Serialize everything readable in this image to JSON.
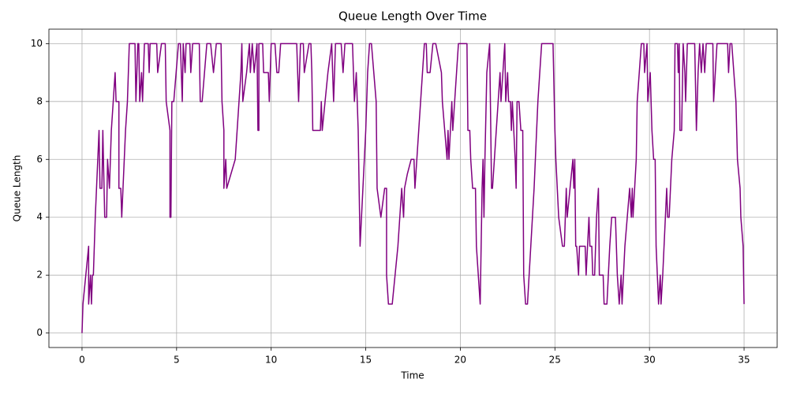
{
  "chart_data": {
    "type": "line",
    "title": "Queue Length Over Time",
    "x_label": "Time",
    "y_label": "Queue Length",
    "x": [
      0,
      0.05,
      0.35,
      0.35,
      0.45,
      0.5,
      0.55,
      0.6,
      0.7,
      0.9,
      0.95,
      1.05,
      1.1,
      1.2,
      1.3,
      1.35,
      1.45,
      1.55,
      1.75,
      1.8,
      1.95,
      1.95,
      2.05,
      2.1,
      2.3,
      2.4,
      2.5,
      2.8,
      2.85,
      2.95,
      3.0,
      3.05,
      3.15,
      3.2,
      3.3,
      3.5,
      3.55,
      3.6,
      3.95,
      4.0,
      4.2,
      4.4,
      4.45,
      4.55,
      4.65,
      4.65,
      4.7,
      4.75,
      4.85,
      5.1,
      5.2,
      5.3,
      5.35,
      5.45,
      5.5,
      5.7,
      5.75,
      5.85,
      6.2,
      6.25,
      6.35,
      6.6,
      6.8,
      6.95,
      7.1,
      7.2,
      7.35,
      7.4,
      7.5,
      7.5,
      7.6,
      7.65,
      8.1,
      8.3,
      8.4,
      8.45,
      8.5,
      8.7,
      8.85,
      8.9,
      9.0,
      9.1,
      9.25,
      9.3,
      9.35,
      9.35,
      9.55,
      9.6,
      9.85,
      9.9,
      10.0,
      10.2,
      10.3,
      10.4,
      10.5,
      10.8,
      11.35,
      11.45,
      11.5,
      11.55,
      11.7,
      11.75,
      12.0,
      12.1,
      12.15,
      12.2,
      12.6,
      12.65,
      12.7,
      13.0,
      13.2,
      13.3,
      13.4,
      13.7,
      13.8,
      13.9,
      14.05,
      14.3,
      14.4,
      14.5,
      14.6,
      14.7,
      15.0,
      15.1,
      15.2,
      15.3,
      15.55,
      15.6,
      15.8,
      16.0,
      16.1,
      16.1,
      16.2,
      16.4,
      16.7,
      16.9,
      17.0,
      17.05,
      17.2,
      17.4,
      17.55,
      17.6,
      17.8,
      18.0,
      18.1,
      18.2,
      18.25,
      18.4,
      18.55,
      18.7,
      19.0,
      19.05,
      19.3,
      19.35,
      19.4,
      19.55,
      19.6,
      19.8,
      19.9,
      20.2,
      20.35,
      20.4,
      20.5,
      20.55,
      20.65,
      20.8,
      20.85,
      21.05,
      21.15,
      21.2,
      21.25,
      21.3,
      21.4,
      21.55,
      21.65,
      21.7,
      21.8,
      22.0,
      22.1,
      22.15,
      22.25,
      22.35,
      22.4,
      22.5,
      22.55,
      22.65,
      22.7,
      22.75,
      22.9,
      22.95,
      23.0,
      23.1,
      23.2,
      23.3,
      23.35,
      23.45,
      23.55,
      23.9,
      24.1,
      24.3,
      24.9,
      25.0,
      25.05,
      25.2,
      25.4,
      25.5,
      25.55,
      25.6,
      25.65,
      25.8,
      25.95,
      26.0,
      26.05,
      26.1,
      26.15,
      26.25,
      26.3,
      26.6,
      26.65,
      26.8,
      26.85,
      26.95,
      27.0,
      27.1,
      27.2,
      27.3,
      27.35,
      27.55,
      27.6,
      27.75,
      27.9,
      28.0,
      28.2,
      28.3,
      28.4,
      28.5,
      28.55,
      28.7,
      28.95,
      29.04,
      29.09,
      29.13,
      29.3,
      29.35,
      29.57,
      29.7,
      29.74,
      29.87,
      29.91,
      30.04,
      30.13,
      30.22,
      30.3,
      30.35,
      30.48,
      30.57,
      30.61,
      30.7,
      30.91,
      30.96,
      31.04,
      31.18,
      31.31,
      31.35,
      31.48,
      31.52,
      31.57,
      31.61,
      31.7,
      31.78,
      31.87,
      31.91,
      32.0,
      32.39,
      32.48,
      32.57,
      32.65,
      32.74,
      32.83,
      32.92,
      33.0,
      33.35,
      33.39,
      33.48,
      33.57,
      33.87,
      34.13,
      34.18,
      34.26,
      34.35,
      34.57,
      34.65,
      34.79,
      34.83,
      34.95,
      35.0
    ],
    "values": [
      0,
      1,
      3,
      1,
      2,
      1,
      2,
      2,
      4,
      7,
      5,
      5,
      7,
      4,
      4,
      6,
      5,
      7,
      9,
      8,
      8,
      5,
      5,
      4,
      7,
      8,
      10,
      10,
      8,
      10,
      10,
      8,
      9,
      8,
      10,
      10,
      9,
      10,
      10,
      9,
      10,
      10,
      8,
      7.5,
      7,
      4,
      4,
      8,
      8,
      10,
      10,
      8,
      10,
      9,
      10,
      10,
      9,
      10,
      10,
      8,
      8,
      10,
      10,
      9,
      10,
      10,
      10,
      8,
      7,
      5,
      6,
      5,
      6,
      8,
      9,
      10,
      8,
      9,
      10,
      9,
      10,
      9,
      10,
      7,
      7,
      10,
      10,
      9,
      9,
      8,
      10,
      10,
      9,
      9,
      10,
      10,
      10,
      8,
      9,
      10,
      10,
      9,
      10,
      10,
      9,
      7,
      7,
      8,
      7,
      9,
      10,
      8,
      10,
      10,
      9,
      10,
      10,
      10,
      8,
      9,
      7,
      3,
      7,
      9,
      10,
      10,
      8,
      5,
      4,
      5,
      5,
      2,
      1,
      1,
      3,
      5,
      4,
      5,
      5.5,
      6,
      6,
      5,
      7,
      9,
      10,
      10,
      9,
      9,
      10,
      10,
      9,
      8,
      6,
      7,
      6,
      8,
      7,
      9,
      10,
      10,
      10,
      7,
      7,
      6,
      5,
      5,
      3,
      1,
      5,
      6,
      4,
      6,
      9,
      10,
      5,
      5,
      6,
      8,
      9,
      8,
      9,
      10,
      8,
      9,
      8,
      8,
      7,
      8,
      6,
      5,
      8,
      8,
      7,
      7,
      2,
      1,
      1,
      5,
      8,
      10,
      10,
      7,
      6,
      4,
      3,
      3,
      4,
      5,
      4,
      5,
      6,
      5,
      6,
      3,
      3,
      2,
      3,
      3,
      2,
      4,
      3,
      3,
      2,
      2,
      4,
      5,
      2,
      2,
      1,
      1,
      3,
      4,
      4,
      2,
      1,
      2,
      1,
      3,
      5,
      4,
      5,
      4,
      6,
      8,
      10,
      10,
      9,
      10,
      8,
      9,
      7,
      6,
      6,
      3,
      1,
      2,
      1,
      2,
      5,
      4,
      4,
      6,
      7,
      10,
      10,
      9,
      10,
      7,
      7,
      10,
      9,
      8,
      10,
      10,
      7,
      9,
      10,
      9,
      10,
      9,
      10,
      10,
      8,
      9,
      10,
      10,
      10,
      9,
      10,
      10,
      8,
      6,
      5,
      4,
      3,
      1
    ],
    "color": "#800080",
    "xlim": [
      -1.75,
      36.75
    ],
    "xticks": [
      0,
      5,
      10,
      15,
      20,
      25,
      30,
      35
    ],
    "ylim": [
      -0.5,
      10.5
    ],
    "yticks": [
      0,
      2,
      4,
      6,
      8,
      10
    ],
    "grid": true
  }
}
